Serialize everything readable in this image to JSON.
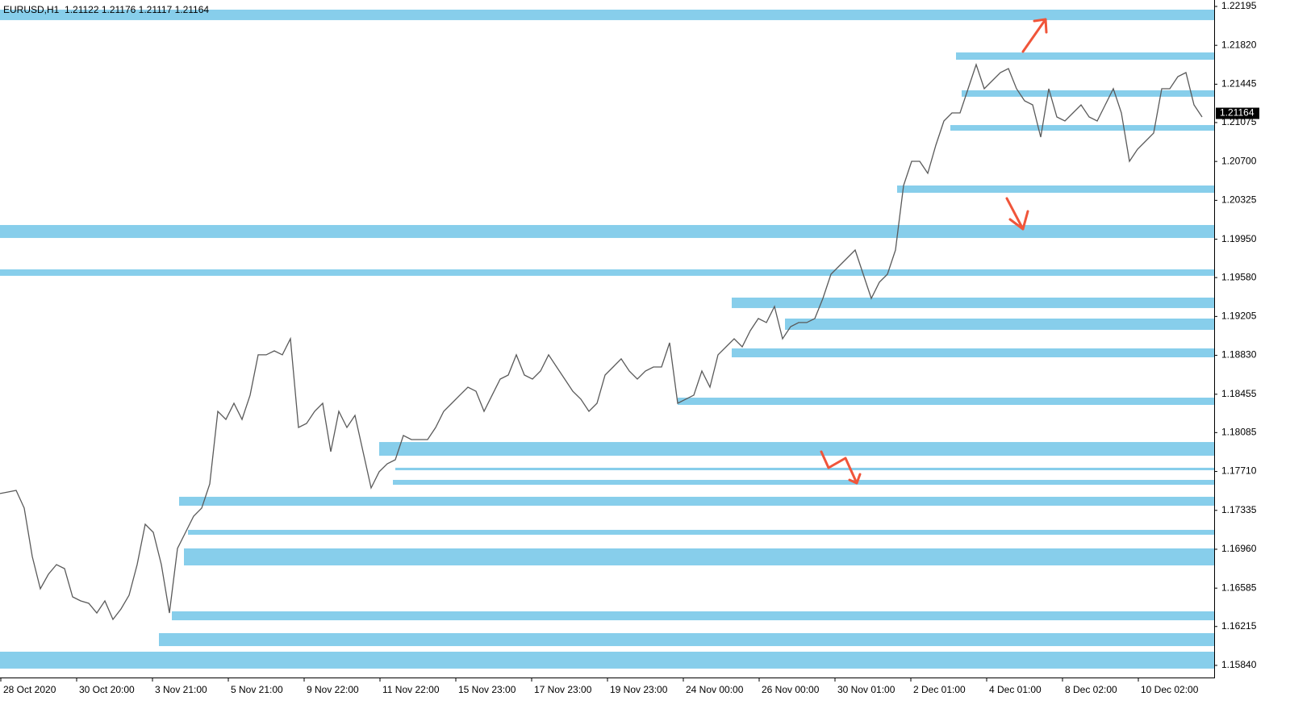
{
  "chart_data": {
    "type": "line",
    "title": "EURUSD,H1  1.21122 1.21176 1.21117 1.21164",
    "color": "#5a5a5a",
    "zone_color": "#87ceeb",
    "last_price": 1.21164,
    "ylim": [
      1.15723,
      1.22257
    ],
    "yticks": [
      {
        "value": 1.22195,
        "label": "1.22195"
      },
      {
        "value": 1.2182,
        "label": "1.21820"
      },
      {
        "value": 1.21445,
        "label": "1.21445"
      },
      {
        "value": 1.21075,
        "label": "1.21075"
      },
      {
        "value": 1.207,
        "label": "1.20700"
      },
      {
        "value": 1.20325,
        "label": "1.20325"
      },
      {
        "value": 1.1995,
        "label": "1.19950"
      },
      {
        "value": 1.1958,
        "label": "1.19580"
      },
      {
        "value": 1.19205,
        "label": "1.19205"
      },
      {
        "value": 1.1883,
        "label": "1.18830"
      },
      {
        "value": 1.18455,
        "label": "1.18455"
      },
      {
        "value": 1.18085,
        "label": "1.18085"
      },
      {
        "value": 1.1771,
        "label": "1.17710"
      },
      {
        "value": 1.17335,
        "label": "1.17335"
      },
      {
        "value": 1.1696,
        "label": "1.16960"
      },
      {
        "value": 1.16585,
        "label": "1.16585"
      },
      {
        "value": 1.16215,
        "label": "1.16215"
      },
      {
        "value": 1.1584,
        "label": "1.15840"
      }
    ],
    "x_labels": [
      "28 Oct 2020",
      "30 Oct 20:00",
      "3 Nov 21:00",
      "5 Nov 21:00",
      "9 Nov 22:00",
      "11 Nov 22:00",
      "15 Nov 23:00",
      "17 Nov 23:00",
      "19 Nov 23:00",
      "24 Nov 00:00",
      "26 Nov 00:00",
      "30 Nov 01:00",
      "2 Dec 01:00",
      "4 Dec 01:00",
      "8 Dec 02:00",
      "10 Dec 02:00"
    ],
    "values": [
      1.17497,
      1.17512,
      1.17528,
      1.17357,
      1.1689,
      1.16579,
      1.16719,
      1.16812,
      1.16773,
      1.16501,
      1.16462,
      1.16439,
      1.16345,
      1.16462,
      1.16283,
      1.16384,
      1.16517,
      1.16812,
      1.17201,
      1.17123,
      1.16812,
      1.16345,
      1.16968,
      1.17123,
      1.17279,
      1.17357,
      1.1759,
      1.1829,
      1.18212,
      1.18368,
      1.18212,
      1.18446,
      1.18835,
      1.18835,
      1.18873,
      1.18835,
      1.1899,
      1.18134,
      1.18173,
      1.1829,
      1.18368,
      1.17901,
      1.1829,
      1.18134,
      1.18251,
      1.17901,
      1.17551,
      1.17707,
      1.17784,
      1.17823,
      1.18057,
      1.18018,
      1.18018,
      1.18018,
      1.18134,
      1.1829,
      1.18368,
      1.18446,
      1.18523,
      1.18484,
      1.1829,
      1.18446,
      1.18601,
      1.1864,
      1.18835,
      1.1864,
      1.18601,
      1.18679,
      1.18835,
      1.18718,
      1.18601,
      1.18484,
      1.18407,
      1.1829,
      1.18368,
      1.1864,
      1.18718,
      1.18796,
      1.18679,
      1.18601,
      1.18679,
      1.18718,
      1.18718,
      1.18951,
      1.18368,
      1.18407,
      1.18446,
      1.18679,
      1.18523,
      1.18835,
      1.18912,
      1.1899,
      1.18912,
      1.19068,
      1.19185,
      1.19146,
      1.19301,
      1.1899,
      1.19107,
      1.19146,
      1.19146,
      1.19185,
      1.19379,
      1.19612,
      1.1969,
      1.19768,
      1.19846,
      1.19612,
      1.19379,
      1.19535,
      1.19612,
      1.19846,
      1.20468,
      1.20701,
      1.20701,
      1.20585,
      1.20857,
      1.2109,
      1.21168,
      1.21168,
      1.21401,
      1.21635,
      1.21401,
      1.21479,
      1.21557,
      1.21596,
      1.21401,
      1.21285,
      1.21246,
      1.20935,
      1.21401,
      1.21129,
      1.2109,
      1.21168,
      1.21246,
      1.21129,
      1.2109,
      1.21246,
      1.21401,
      1.21168,
      1.20701,
      1.20818,
      1.20896,
      1.20974,
      1.21401,
      1.21401,
      1.21518,
      1.21557,
      1.21246,
      1.21129
    ],
    "zones": [
      {
        "low": 1.22063,
        "high": 1.22164,
        "from": 0
      },
      {
        "low": 1.21681,
        "high": 1.21751,
        "from": 118.5
      },
      {
        "low": 1.21324,
        "high": 1.21386,
        "from": 119.2
      },
      {
        "low": 1.20997,
        "high": 1.21051,
        "from": 117.8
      },
      {
        "low": 1.20398,
        "high": 1.20468,
        "from": 111.2
      },
      {
        "low": 1.19962,
        "high": 1.20087,
        "from": 0
      },
      {
        "low": 1.19597,
        "high": 1.19659,
        "from": 0
      },
      {
        "low": 1.19286,
        "high": 1.19387,
        "from": 90.7
      },
      {
        "low": 1.19076,
        "high": 1.19185,
        "from": 97.3
      },
      {
        "low": 1.18811,
        "high": 1.18897,
        "from": 90.7
      },
      {
        "low": 1.18352,
        "high": 1.18422,
        "from": 84
      },
      {
        "low": 1.17862,
        "high": 1.17994,
        "from": 47
      },
      {
        "low": 1.17722,
        "high": 1.17746,
        "from": 49
      },
      {
        "low": 1.17582,
        "high": 1.17629,
        "from": 48.7
      },
      {
        "low": 1.1738,
        "high": 1.17466,
        "from": 22.2
      },
      {
        "low": 1.171,
        "high": 1.17147,
        "from": 23.3
      },
      {
        "low": 1.16804,
        "high": 1.16968,
        "from": 22.8
      },
      {
        "low": 1.16275,
        "high": 1.16361,
        "from": 21.3
      },
      {
        "low": 1.16026,
        "high": 1.16151,
        "from": 19.7
      },
      {
        "low": 1.15809,
        "high": 1.15972,
        "from": 0
      }
    ]
  }
}
